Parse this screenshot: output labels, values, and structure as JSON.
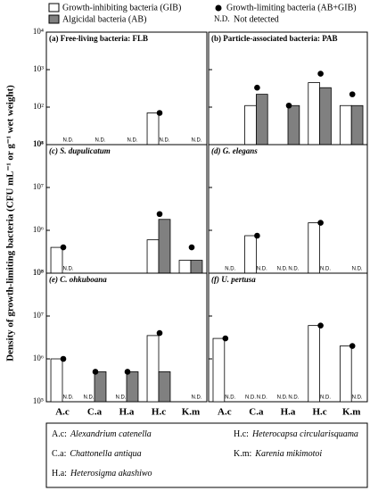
{
  "legend": {
    "nd_symbol": "N.D.",
    "nd_text": "Not detected"
  },
  "y_label": "Density of growth-limiting bacteria (CFU mL⁻¹ or g⁻¹ wet weight)",
  "footer": [
    {
      "abbr": "A.c:",
      "name": "Alexandrium catenella"
    },
    {
      "abbr": "H.c:",
      "name": "Heterocapsa circularisquama"
    },
    {
      "abbr": "C.a:",
      "name": "Chattonella antiqua"
    },
    {
      "abbr": "K.m:",
      "name": "Karenia mikimotoi"
    },
    {
      "abbr": "H.a:",
      "name": "Heterosigma akashiwo"
    }
  ],
  "chart_data": [
    {
      "type": "bar",
      "title": "(a) Free-living bacteria: FLB",
      "log_scale": true,
      "ylim": [
        10,
        10000
      ],
      "yticks": [
        {
          "value": 10,
          "label": "10¹"
        },
        {
          "value": 100,
          "label": "10²"
        },
        {
          "value": 1000,
          "label": "10³"
        },
        {
          "value": 10000,
          "label": "10⁴"
        }
      ],
      "series": [
        {
          "name": "Growth-inhibiting bacteria (GIB)",
          "color": "#ffffff",
          "values": [
            null,
            null,
            null,
            70,
            null
          ],
          "value_labels": [
            null,
            null,
            null,
            null,
            null
          ]
        },
        {
          "name": "Algicidal bacteria (AB)",
          "color": "#808080",
          "values": [
            null,
            null,
            null,
            null,
            null
          ],
          "value_labels": [
            "N.D.",
            "N.D.",
            "N.D.",
            "N.D.",
            "N.D."
          ]
        },
        {
          "name": "Growth-limiting bacteria (AB+GIB)",
          "color": "#000000",
          "marker": "dot",
          "values": [
            null,
            null,
            null,
            70,
            null
          ]
        }
      ]
    },
    {
      "type": "bar",
      "title": "(b) Particle-associated bacteria: PAB",
      "log_scale": true,
      "ylim": [
        10,
        10000
      ],
      "series": [
        {
          "color": "#ffffff",
          "values": [
            null,
            110,
            null,
            450,
            110
          ]
        },
        {
          "color": "#808080",
          "values": [
            null,
            220,
            110,
            330,
            110
          ]
        },
        {
          "color": "#000000",
          "marker": "dot",
          "values": [
            null,
            330,
            110,
            780,
            220
          ]
        }
      ]
    },
    {
      "type": "bar",
      "title": "(c) S. dupulicatum",
      "log_scale": true,
      "ylim": [
        100000,
        100000000
      ],
      "yticks": [
        {
          "value": 100000,
          "label": "10⁵"
        },
        {
          "value": 1000000,
          "label": "10⁶"
        },
        {
          "value": 10000000,
          "label": "10⁷"
        },
        {
          "value": 100000000,
          "label": "10⁸"
        }
      ],
      "series": [
        {
          "color": "#ffffff",
          "values": [
            400000,
            null,
            null,
            600000,
            200000
          ]
        },
        {
          "color": "#808080",
          "values": [
            null,
            null,
            null,
            1800000,
            200000
          ],
          "value_labels": [
            "N.D.",
            null,
            null,
            null,
            null
          ]
        },
        {
          "color": "#000000",
          "marker": "dot",
          "values": [
            400000,
            null,
            null,
            2400000,
            400000
          ]
        }
      ]
    },
    {
      "type": "bar",
      "title": "(d) G. elegans",
      "log_scale": true,
      "ylim": [
        100000,
        100000000
      ],
      "series": [
        {
          "color": "#ffffff",
          "values": [
            null,
            750000,
            null,
            1500000,
            null
          ],
          "value_labels": [
            null,
            null,
            "N.D.",
            null,
            null
          ]
        },
        {
          "color": "#808080",
          "values": [
            null,
            null,
            null,
            null,
            null
          ],
          "value_labels": [
            "N.D.",
            "N.D.",
            "N.D.",
            "N.D.",
            "N.D."
          ]
        },
        {
          "color": "#000000",
          "marker": "dot",
          "values": [
            null,
            750000,
            null,
            1500000,
            null
          ]
        }
      ]
    },
    {
      "type": "bar",
      "title": "(e) C. ohkuboana",
      "log_scale": true,
      "ylim": [
        100000,
        100000000
      ],
      "categories": [
        "A.c",
        "C.a",
        "H.a",
        "H.c",
        "K.m"
      ],
      "yticks": [
        {
          "value": 100000,
          "label": "10⁵"
        },
        {
          "value": 1000000,
          "label": "10⁶"
        },
        {
          "value": 10000000,
          "label": "10⁷"
        },
        {
          "value": 100000000,
          "label": "10⁸"
        }
      ],
      "series": [
        {
          "color": "#ffffff",
          "values": [
            1000000,
            null,
            null,
            3500000,
            null
          ],
          "value_labels": [
            null,
            "N.D.",
            "N.D.",
            null,
            null
          ]
        },
        {
          "color": "#808080",
          "values": [
            null,
            500000,
            500000,
            500000,
            null
          ],
          "value_labels": [
            "N.D.",
            null,
            null,
            null,
            "N.D."
          ]
        },
        {
          "color": "#000000",
          "marker": "dot",
          "values": [
            1000000,
            500000,
            500000,
            4000000,
            null
          ]
        }
      ]
    },
    {
      "type": "bar",
      "title": "(f) U. pertusa",
      "log_scale": true,
      "ylim": [
        100000,
        100000000
      ],
      "categories": [
        "A.c",
        "C.a",
        "H.a",
        "H.c",
        "K.m"
      ],
      "series": [
        {
          "color": "#ffffff",
          "values": [
            3000000,
            null,
            null,
            6000000,
            2000000
          ],
          "value_labels": [
            null,
            "N.D.",
            "N.D.",
            null,
            null
          ]
        },
        {
          "color": "#808080",
          "values": [
            null,
            null,
            null,
            null,
            null
          ],
          "value_labels": [
            "N.D.",
            "N.D.",
            "N.D.",
            "N.D.",
            "N.D."
          ]
        },
        {
          "color": "#000000",
          "marker": "dot",
          "values": [
            3000000,
            null,
            null,
            6000000,
            2000000
          ]
        }
      ]
    }
  ]
}
